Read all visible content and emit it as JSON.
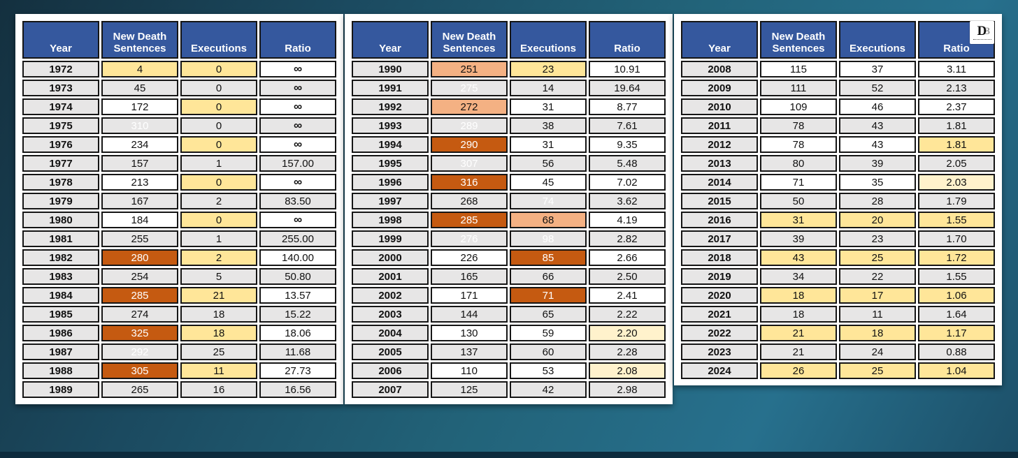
{
  "columns": [
    "Year",
    "New Death Sentences",
    "Executions",
    "Ratio"
  ],
  "colors": {
    "header_bg": "#35589E",
    "header_text": "#FFFFFF",
    "stripe_gray": "#E7E6E6",
    "row_white": "#FFFFFF",
    "yellow": "#FFE699",
    "pale_yellow": "#FFF2CC",
    "light_orange": "#F4B183",
    "dark_orange": "#C55A11",
    "background_teal": "#226379"
  },
  "logo": {
    "primary": "D",
    "secondary": "3"
  },
  "chart_data": [
    {
      "type": "table",
      "name": "years-1972-1989",
      "columns": [
        "Year",
        "New Death Sentences",
        "Executions",
        "Ratio"
      ],
      "rows": [
        [
          "1972",
          "4",
          "0",
          "∞",
          "y",
          "y",
          "n"
        ],
        [
          "1973",
          "45",
          "0",
          "∞",
          "y",
          "y",
          "n"
        ],
        [
          "1974",
          "172",
          "0",
          "∞",
          "n",
          "y",
          "n"
        ],
        [
          "1975",
          "310",
          "0",
          "∞",
          "do",
          "y",
          "n"
        ],
        [
          "1976",
          "234",
          "0",
          "∞",
          "n",
          "y",
          "n"
        ],
        [
          "1977",
          "157",
          "1",
          "157.00",
          "n",
          "y",
          "n"
        ],
        [
          "1978",
          "213",
          "0",
          "∞",
          "n",
          "y",
          "n"
        ],
        [
          "1979",
          "167",
          "2",
          "83.50",
          "n",
          "y",
          "n"
        ],
        [
          "1980",
          "184",
          "0",
          "∞",
          "n",
          "y",
          "n"
        ],
        [
          "1981",
          "255",
          "1",
          "255.00",
          "lo",
          "y",
          "n"
        ],
        [
          "1982",
          "280",
          "2",
          "140.00",
          "do",
          "y",
          "n"
        ],
        [
          "1983",
          "254",
          "5",
          "50.80",
          "lo",
          "y",
          "n"
        ],
        [
          "1984",
          "285",
          "21",
          "13.57",
          "do",
          "y",
          "n"
        ],
        [
          "1985",
          "274",
          "18",
          "15.22",
          "lo",
          "y",
          "n"
        ],
        [
          "1986",
          "325",
          "18",
          "18.06",
          "do",
          "y",
          "n"
        ],
        [
          "1987",
          "292",
          "25",
          "11.68",
          "do",
          "y",
          "n"
        ],
        [
          "1988",
          "305",
          "11",
          "27.73",
          "do",
          "y",
          "n"
        ],
        [
          "1989",
          "265",
          "16",
          "16.56",
          "lo",
          "y",
          "n"
        ]
      ]
    },
    {
      "type": "table",
      "name": "years-1990-2007",
      "columns": [
        "Year",
        "New Death Sentences",
        "Executions",
        "Ratio"
      ],
      "rows": [
        [
          "1990",
          "251",
          "23",
          "10.91",
          "lo",
          "y",
          "n"
        ],
        [
          "1991",
          "275",
          "14",
          "19.64",
          "do",
          "y",
          "n"
        ],
        [
          "1992",
          "272",
          "31",
          "8.77",
          "lo",
          "n",
          "n"
        ],
        [
          "1993",
          "289",
          "38",
          "7.61",
          "do",
          "n",
          "n"
        ],
        [
          "1994",
          "290",
          "31",
          "9.35",
          "do",
          "n",
          "n"
        ],
        [
          "1995",
          "307",
          "56",
          "5.48",
          "do",
          "n",
          "n"
        ],
        [
          "1996",
          "316",
          "45",
          "7.02",
          "do",
          "n",
          "n"
        ],
        [
          "1997",
          "268",
          "74",
          "3.62",
          "lo",
          "do",
          "n"
        ],
        [
          "1998",
          "285",
          "68",
          "4.19",
          "do",
          "lo",
          "n"
        ],
        [
          "1999",
          "276",
          "98",
          "2.82",
          "do",
          "do",
          "n"
        ],
        [
          "2000",
          "226",
          "85",
          "2.66",
          "n",
          "do",
          "n"
        ],
        [
          "2001",
          "165",
          "66",
          "2.50",
          "n",
          "lo",
          "n"
        ],
        [
          "2002",
          "171",
          "71",
          "2.41",
          "n",
          "do",
          "n"
        ],
        [
          "2003",
          "144",
          "65",
          "2.22",
          "n",
          "lo",
          "py"
        ],
        [
          "2004",
          "130",
          "59",
          "2.20",
          "n",
          "n",
          "py"
        ],
        [
          "2005",
          "137",
          "60",
          "2.28",
          "n",
          "n",
          "n"
        ],
        [
          "2006",
          "110",
          "53",
          "2.08",
          "n",
          "n",
          "py"
        ],
        [
          "2007",
          "125",
          "42",
          "2.98",
          "n",
          "n",
          "n"
        ]
      ]
    },
    {
      "type": "table",
      "name": "years-2008-2024",
      "columns": [
        "Year",
        "New Death Sentences",
        "Executions",
        "Ratio"
      ],
      "rows": [
        [
          "2008",
          "115",
          "37",
          "3.11",
          "n",
          "n",
          "n"
        ],
        [
          "2009",
          "111",
          "52",
          "2.13",
          "n",
          "n",
          "py"
        ],
        [
          "2010",
          "109",
          "46",
          "2.37",
          "n",
          "n",
          "n"
        ],
        [
          "2011",
          "78",
          "43",
          "1.81",
          "n",
          "n",
          "y"
        ],
        [
          "2012",
          "78",
          "43",
          "1.81",
          "n",
          "n",
          "y"
        ],
        [
          "2013",
          "80",
          "39",
          "2.05",
          "n",
          "n",
          "py"
        ],
        [
          "2014",
          "71",
          "35",
          "2.03",
          "n",
          "n",
          "py"
        ],
        [
          "2015",
          "50",
          "28",
          "1.79",
          "y",
          "y",
          "y"
        ],
        [
          "2016",
          "31",
          "20",
          "1.55",
          "y",
          "y",
          "y"
        ],
        [
          "2017",
          "39",
          "23",
          "1.70",
          "y",
          "y",
          "y"
        ],
        [
          "2018",
          "43",
          "25",
          "1.72",
          "y",
          "y",
          "y"
        ],
        [
          "2019",
          "34",
          "22",
          "1.55",
          "y",
          "y",
          "y"
        ],
        [
          "2020",
          "18",
          "17",
          "1.06",
          "y",
          "y",
          "y"
        ],
        [
          "2021",
          "18",
          "11",
          "1.64",
          "y",
          "y",
          "y"
        ],
        [
          "2022",
          "21",
          "18",
          "1.17",
          "y",
          "y",
          "y"
        ],
        [
          "2023",
          "21",
          "24",
          "0.88",
          "y",
          "y",
          "y"
        ],
        [
          "2024",
          "26",
          "25",
          "1.04",
          "y",
          "y",
          "y"
        ]
      ]
    }
  ]
}
